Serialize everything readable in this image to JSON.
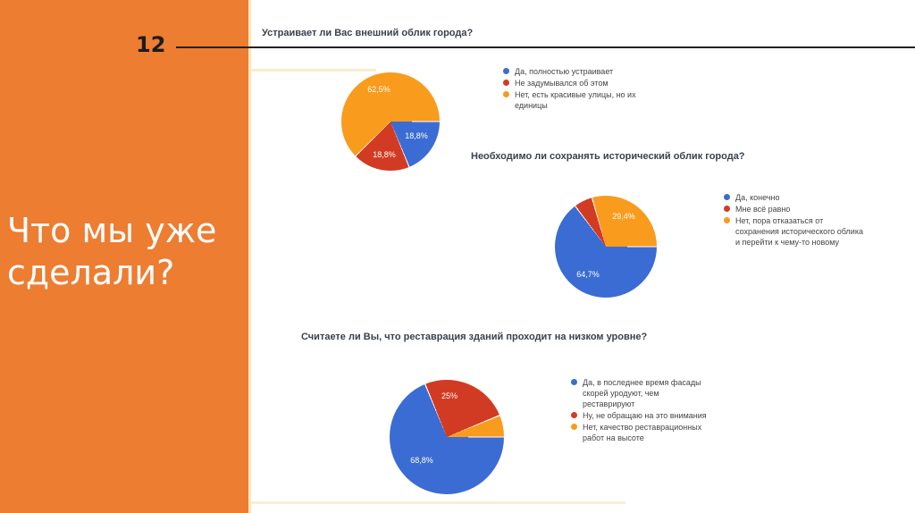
{
  "slide": {
    "page_number": "12",
    "title": "Что мы уже\nсделали?",
    "accent_color": "#ED7D31"
  },
  "chart_data": [
    {
      "type": "pie",
      "title": "Устраивает ли Вас внешний облик города?",
      "labels": [
        "Да, полностью устраивает",
        "Не задумывался об этом",
        "Нет, есть красивые улицы, но их\nединицы"
      ],
      "values": [
        18.8,
        18.8,
        62.5
      ],
      "colors": [
        "#3B6CD3",
        "#D23B23",
        "#F99B1D"
      ],
      "slice_labels": [
        "18,8%",
        "18,8%",
        "62,5%"
      ],
      "legend_position": "right",
      "start_angle_deg": 90
    },
    {
      "type": "pie",
      "title": "Необходимо ли сохранять исторический облик города?",
      "labels": [
        "Да, конечно",
        "Мне всё равно",
        "Нет, пора отказаться от\nсохранения исторического облика\nи перейти к чему-то новому"
      ],
      "values": [
        64.7,
        5.9,
        29.4
      ],
      "colors": [
        "#3B6CD3",
        "#D23B23",
        "#F99B1D"
      ],
      "slice_labels": [
        "64,7%",
        "",
        "29,4%"
      ],
      "legend_position": "right",
      "start_angle_deg": 90
    },
    {
      "type": "pie",
      "title": "Считаете ли Вы, что реставрация зданий проходит на низком уровне?",
      "labels": [
        "Да, в последнее время фасады\nскорей уродуют, чем\nреставрируют",
        "Ну, не обращаю на это внимания",
        "Нет, качество реставрационных\nработ на высоте"
      ],
      "values": [
        68.8,
        25,
        6.2
      ],
      "colors": [
        "#3B6CD3",
        "#D23B23",
        "#F99B1D"
      ],
      "slice_labels": [
        "68,8%",
        "25%",
        ""
      ],
      "legend_position": "right",
      "start_angle_deg": 90
    }
  ]
}
